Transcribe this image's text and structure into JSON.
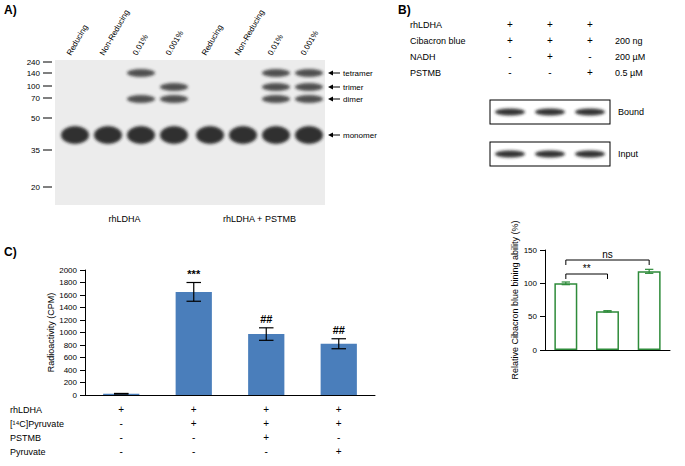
{
  "panel_a": {
    "label": "A)",
    "mw_markers": [
      240,
      140,
      100,
      70,
      50,
      35,
      20
    ],
    "forms": [
      "tetramer",
      "trimer",
      "dimer",
      "monomer"
    ],
    "groups": [
      {
        "name": "rhLDHA",
        "lanes": [
          {
            "label": "Reducing",
            "bands": [
              "monomer"
            ]
          },
          {
            "label": "Non-Reducing",
            "bands": [
              "monomer"
            ]
          },
          {
            "label": "0.01%",
            "bands": [
              "tetramer",
              "dimer",
              "monomer"
            ]
          },
          {
            "label": "0.001%",
            "bands": [
              "trimer",
              "dimer",
              "monomer"
            ]
          }
        ]
      },
      {
        "name": "rhLDHA + PSTMB",
        "lanes": [
          {
            "label": "Reducing",
            "bands": [
              "monomer"
            ]
          },
          {
            "label": "Non-Reducing",
            "bands": [
              "monomer"
            ]
          },
          {
            "label": "0.01%",
            "bands": [
              "tetramer",
              "trimer",
              "dimer",
              "monomer"
            ]
          },
          {
            "label": "0.001%",
            "bands": [
              "tetramer",
              "trimer",
              "dimer",
              "monomer"
            ]
          }
        ]
      }
    ]
  },
  "panel_b": {
    "label": "B)",
    "conditions": [
      {
        "name": "rhLDHA",
        "signs": [
          "+",
          "+",
          "+"
        ]
      },
      {
        "name": "Cibacron blue",
        "signs": [
          "+",
          "+",
          "+"
        ],
        "amount": "200 ng"
      },
      {
        "name": "NADH",
        "signs": [
          "-",
          "+",
          "-"
        ],
        "amount": "200 µM"
      },
      {
        "name": "PSTMB",
        "signs": [
          "-",
          "-",
          "+"
        ],
        "amount": "0.5 µM"
      }
    ],
    "blots": [
      "Bound",
      "Input"
    ]
  },
  "panel_c": {
    "label": "C)",
    "conditions": [
      {
        "name": "rhLDHA",
        "signs": [
          "+",
          "+",
          "+",
          "+"
        ]
      },
      {
        "name": "[¹⁴C]Pyruvate",
        "signs": [
          "-",
          "+",
          "+",
          "+"
        ]
      },
      {
        "name": "PSTMB",
        "signs": [
          "-",
          "-",
          "+",
          "-"
        ]
      },
      {
        "name": "Pyruvate",
        "signs": [
          "-",
          "-",
          "-",
          "+"
        ]
      }
    ]
  },
  "chart_data": [
    {
      "type": "bar",
      "ylabel": "Relative Cibacron blue bining ability (%)",
      "categories": [
        null,
        null,
        null
      ],
      "values": [
        100,
        58,
        118
      ],
      "errors": [
        2,
        1,
        3
      ],
      "color": "#2e8b3a",
      "ylim": [
        0,
        150
      ],
      "yticks": [
        0,
        50,
        100,
        150
      ],
      "grid": false,
      "tick_labels": "y",
      "comparisons": [
        {
          "from": 0,
          "to": 1,
          "label": "**"
        },
        {
          "from": 0,
          "to": 2,
          "label": "ns"
        }
      ]
    },
    {
      "type": "bar",
      "ylabel": "Radioactivity (CPM)",
      "categories": [
        null,
        null,
        null,
        null
      ],
      "values": [
        20,
        1650,
        975,
        820
      ],
      "errors": [
        5,
        150,
        100,
        80
      ],
      "annotations": [
        null,
        "***",
        "##",
        "##"
      ],
      "color": "#4a7ebb",
      "ylim": [
        0,
        2000
      ],
      "yticks": [
        0,
        200,
        400,
        600,
        800,
        1000,
        1200,
        1400,
        1600,
        1800,
        2000
      ],
      "grid": false,
      "tick_labels": "y"
    }
  ]
}
